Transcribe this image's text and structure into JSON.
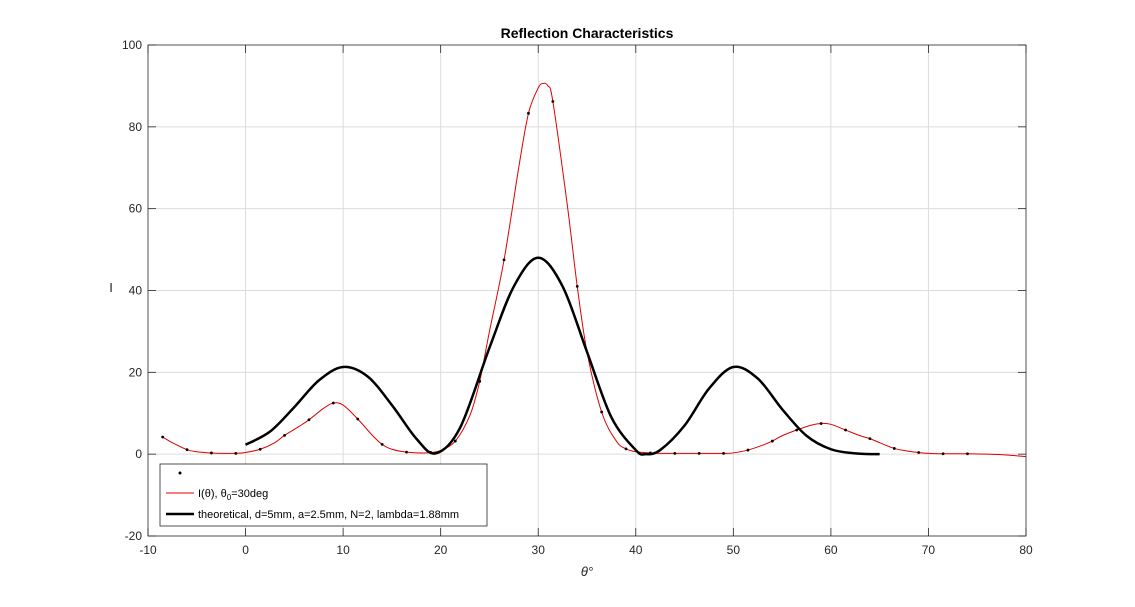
{
  "chart_data": {
    "type": "line",
    "title": "Reflection Characteristics",
    "xlabel": "θ°",
    "ylabel": "I",
    "xlim": [
      -10,
      80
    ],
    "ylim": [
      -20,
      100
    ],
    "xticks": [
      "-10",
      "0",
      "10",
      "20",
      "30",
      "40",
      "50",
      "60",
      "70",
      "80"
    ],
    "yticks": [
      "-20",
      "0",
      "20",
      "40",
      "60",
      "80",
      "100"
    ],
    "grid": true,
    "legend_position": "bottom-left",
    "series": [
      {
        "name": "",
        "style": "markers",
        "color": "#000000",
        "x": [
          -8.5,
          -6,
          -3.5,
          -1,
          1.5,
          4,
          6.5,
          9,
          11.5,
          14,
          16.5,
          19,
          21.5,
          24,
          26.5,
          29,
          31.5,
          34,
          36.5,
          39,
          41.5,
          44,
          46.5,
          49,
          51.5,
          54,
          56.5,
          59,
          61.5,
          64,
          66.5,
          69,
          71.5,
          74
        ],
        "y": [
          4.2,
          1.1,
          0.3,
          0.2,
          1.2,
          4.6,
          8.4,
          12.5,
          8.6,
          2.4,
          0.5,
          0.4,
          3.2,
          17.8,
          47.5,
          83.3,
          86.2,
          41.0,
          10.3,
          1.3,
          0.3,
          0.2,
          0.2,
          0.2,
          1.0,
          3.2,
          5.9,
          7.5,
          5.9,
          3.8,
          1.4,
          0.4,
          0.1,
          0.1
        ]
      },
      {
        "name": "I(θ), θ",
        "name_sub": "0",
        "name_suffix": "=30deg",
        "style": "line",
        "color": "#e00000",
        "x": [
          -8.5,
          -7.5,
          -6,
          -5,
          -3.5,
          -2,
          -1,
          0,
          1.5,
          3,
          4,
          5.5,
          6.5,
          8,
          9,
          10,
          11.5,
          13,
          14,
          15,
          16.5,
          18,
          19,
          20,
          21.5,
          23,
          24,
          25,
          26.5,
          28,
          29,
          30,
          30.5,
          31,
          31.5,
          33,
          34,
          35,
          36.5,
          38,
          39,
          40,
          41.5,
          43,
          44,
          46.5,
          49,
          50,
          51.5,
          53,
          54,
          55,
          56.5,
          58,
          59,
          60,
          61.5,
          63,
          64,
          65,
          66.5,
          68,
          69,
          70,
          71.5,
          73,
          74,
          76,
          78,
          80
        ],
        "y": [
          4.2,
          2.8,
          1.1,
          0.6,
          0.3,
          0.2,
          0.2,
          0.4,
          1.2,
          2.8,
          4.6,
          6.8,
          8.4,
          11.2,
          12.5,
          12.0,
          8.6,
          4.6,
          2.4,
          1.2,
          0.5,
          0.3,
          0.4,
          0.9,
          3.2,
          9.5,
          17.8,
          30.0,
          47.5,
          70.0,
          83.3,
          89.5,
          90.6,
          90.0,
          86.2,
          60.5,
          41.0,
          25.0,
          10.3,
          3.2,
          1.3,
          0.6,
          0.3,
          0.2,
          0.2,
          0.2,
          0.2,
          0.3,
          1.0,
          2.2,
          3.2,
          4.5,
          5.9,
          7.1,
          7.5,
          7.3,
          5.9,
          4.5,
          3.8,
          2.8,
          1.4,
          0.7,
          0.4,
          0.2,
          0.1,
          0.1,
          0.1,
          0.0,
          -0.2,
          -0.6
        ]
      },
      {
        "name": "theoretical, d=5mm, a=2.5mm, N=2, lambda=1.88mm",
        "style": "line-bold",
        "color": "#000000",
        "x": [
          0,
          2.5,
          5,
          7.5,
          10,
          12.5,
          15,
          17.5,
          19.5,
          22,
          25,
          27.5,
          30,
          32.5,
          35,
          37.5,
          40,
          41,
          42.5,
          45,
          47.5,
          50,
          52.5,
          55,
          57.5,
          60,
          62.5,
          65
        ],
        "y": [
          2.3,
          5.5,
          11.5,
          18.0,
          21.3,
          19.0,
          12.0,
          3.8,
          0.2,
          6.5,
          26.0,
          41.0,
          48.0,
          41.0,
          25.0,
          9.0,
          1.0,
          0.0,
          1.0,
          7.0,
          16.0,
          21.3,
          18.5,
          11.0,
          4.5,
          1.2,
          0.2,
          0.0
        ]
      }
    ]
  }
}
